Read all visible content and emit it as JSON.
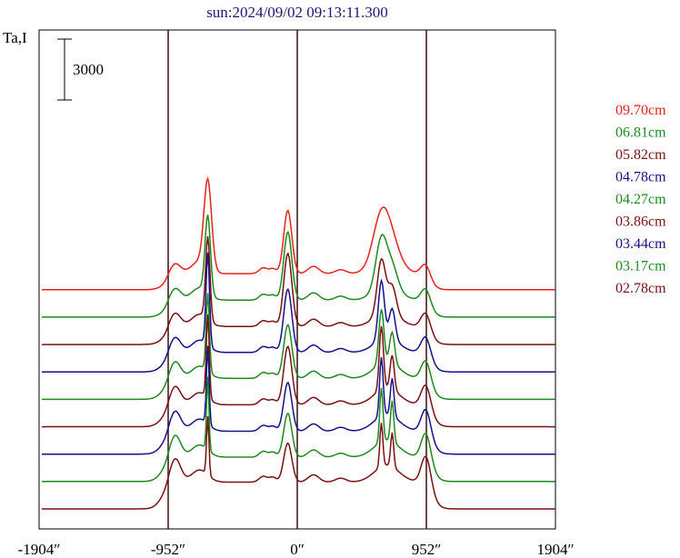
{
  "chart_data": {
    "type": "line",
    "title": "sun:2024/09/02 09:13:11.300",
    "ylabel": "Ta,I",
    "scale_bar_label": "3000",
    "scale_bar_value": 3000,
    "x_tick_labels": [
      "-1904″",
      "-952″",
      "0″",
      "952″",
      "1904″"
    ],
    "x_ticks": [
      -1904,
      -952,
      0,
      952,
      1904
    ],
    "xlim": [
      -1904,
      1904
    ],
    "vertical_lines": [
      -952,
      0,
      952
    ],
    "legend_placement": "right",
    "offset_per_series": 3000,
    "series": [
      {
        "name": "09.70cm",
        "color": "#e8231c",
        "baseline": 8,
        "edge_jump": 0.08,
        "limb_peak": 0.3,
        "lw_peak": 1.8,
        "c_peak": 1.3,
        "e1_peak": 0.9,
        "e2_peak": 0.4,
        "bump": 0.35,
        "lw_width": 28,
        "e1_width": 60
      },
      {
        "name": "06.81cm",
        "color": "#1e8a1e",
        "baseline": 7,
        "edge_jump": 0.1,
        "limb_peak": 0.35,
        "lw_peak": 1.6,
        "c_peak": 1.4,
        "e1_peak": 1.0,
        "e2_peak": 0.6,
        "bump": 0.3,
        "lw_width": 20,
        "e1_width": 40
      },
      {
        "name": "05.82cm",
        "color": "#7a1010",
        "baseline": 6,
        "edge_jump": 0.12,
        "limb_peak": 0.4,
        "lw_peak": 1.7,
        "c_peak": 1.5,
        "e1_peak": 1.1,
        "e2_peak": 0.8,
        "bump": 0.3,
        "lw_width": 16,
        "e1_width": 30
      },
      {
        "name": "04.78cm",
        "color": "#12128a",
        "baseline": 5,
        "edge_jump": 0.15,
        "limb_peak": 0.45,
        "lw_peak": 1.9,
        "c_peak": 1.3,
        "e1_peak": 1.2,
        "e2_peak": 0.9,
        "bump": 0.3,
        "lw_width": 13,
        "e1_width": 22
      },
      {
        "name": "04.27cm",
        "color": "#1e8a1e",
        "baseline": 4,
        "edge_jump": 0.18,
        "limb_peak": 0.5,
        "lw_peak": 1.6,
        "c_peak": 1.1,
        "e1_peak": 1.1,
        "e2_peak": 0.9,
        "bump": 0.35,
        "lw_width": 12,
        "e1_width": 18
      },
      {
        "name": "03.86cm",
        "color": "#7a1010",
        "baseline": 3,
        "edge_jump": 0.2,
        "limb_peak": 0.55,
        "lw_peak": 1.7,
        "c_peak": 1.2,
        "e1_peak": 1.3,
        "e2_peak": 1.0,
        "bump": 0.35,
        "lw_width": 11,
        "e1_width": 15
      },
      {
        "name": "03.44cm",
        "color": "#12128a",
        "baseline": 2,
        "edge_jump": 0.22,
        "limb_peak": 0.6,
        "lw_peak": 1.6,
        "c_peak": 1.0,
        "e1_peak": 1.2,
        "e2_peak": 1.1,
        "bump": 0.35,
        "lw_width": 10,
        "e1_width": 13
      },
      {
        "name": "03.17cm",
        "color": "#1e8a1e",
        "baseline": 1,
        "edge_jump": 0.25,
        "limb_peak": 0.65,
        "lw_peak": 1.5,
        "c_peak": 0.9,
        "e1_peak": 1.1,
        "e2_peak": 1.2,
        "bump": 0.35,
        "lw_width": 9,
        "e1_width": 12
      },
      {
        "name": "02.78cm",
        "color": "#7a1010",
        "baseline": 0,
        "edge_jump": 0.3,
        "limb_peak": 0.7,
        "lw_peak": 1.2,
        "c_peak": 0.8,
        "e1_peak": 0.9,
        "e2_peak": 1.0,
        "bump": 0.35,
        "lw_width": 9,
        "e1_width": 11
      }
    ]
  }
}
